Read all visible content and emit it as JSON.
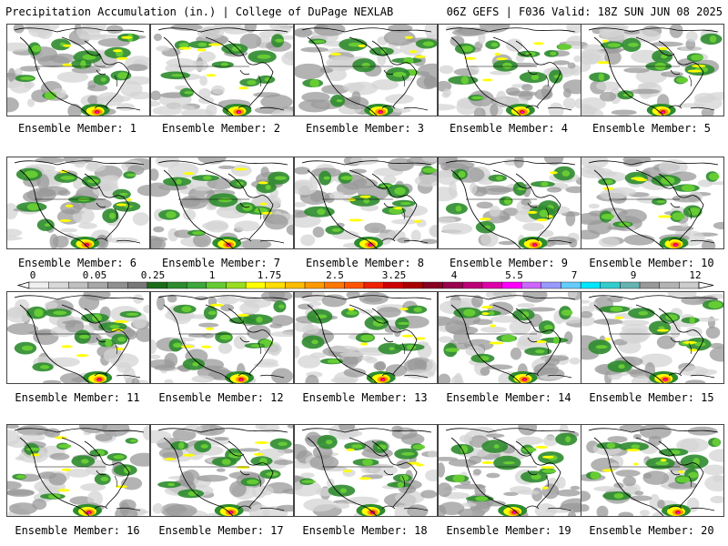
{
  "header": {
    "left": "Precipitation Accumulation (in.) | College of DuPage NEXLAB",
    "right": "06Z GEFS | F036 Valid: 18Z SUN JUN 08 2025"
  },
  "panels": [
    "Ensemble Member: 1",
    "Ensemble Member: 2",
    "Ensemble Member: 3",
    "Ensemble Member: 4",
    "Ensemble Member: 5",
    "Ensemble Member: 6",
    "Ensemble Member: 7",
    "Ensemble Member: 8",
    "Ensemble Member: 9",
    "Ensemble Member: 10",
    "Ensemble Member: 11",
    "Ensemble Member: 12",
    "Ensemble Member: 13",
    "Ensemble Member: 14",
    "Ensemble Member: 15",
    "Ensemble Member: 16",
    "Ensemble Member: 17",
    "Ensemble Member: 18",
    "Ensemble Member: 19",
    "Ensemble Member: 20"
  ],
  "legend": {
    "labels": [
      "0",
      "0.05",
      "0.25",
      "1",
      "1.75",
      "2.5",
      "3.25",
      "4",
      "5.5",
      "7",
      "9",
      "12"
    ],
    "colors": [
      "#f0f0f0",
      "#d9d9d9",
      "#c0c0c0",
      "#a8a8a8",
      "#909090",
      "#787878",
      "#1b6b1b",
      "#2e8b2e",
      "#3da63d",
      "#66cc33",
      "#99dd22",
      "#ffff00",
      "#ffdd00",
      "#ffbb00",
      "#ff9900",
      "#ff7700",
      "#ff5500",
      "#ee2200",
      "#cc0000",
      "#aa0000",
      "#880022",
      "#99004d",
      "#bb0077",
      "#dd00aa",
      "#ff00ff",
      "#cc66ff",
      "#9999ff",
      "#66ccff",
      "#00e5ff",
      "#33cccc",
      "#66b3b3",
      "#999999",
      "#b3b3b3",
      "#cccccc"
    ]
  },
  "colors": {
    "land_gray": "#9a9a9a",
    "light_gray": "#d4d4d4",
    "green": "#2e8b2e",
    "bright_green": "#66cc33",
    "yellow": "#ffff00",
    "orange": "#ff9900",
    "red": "#dd1111",
    "magenta": "#ff00ff"
  }
}
